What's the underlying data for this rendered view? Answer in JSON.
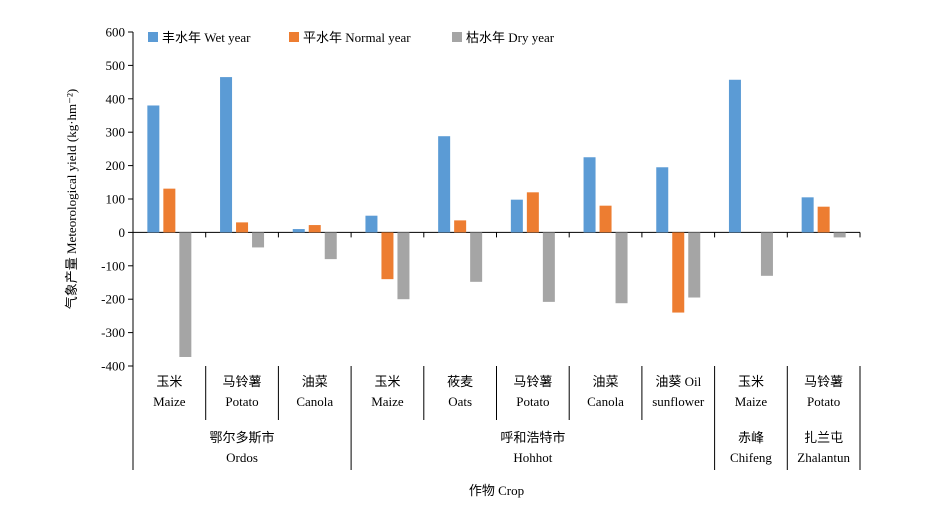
{
  "chart_data": {
    "type": "bar",
    "ylabel": "气象产量 Meteorological yield (kg·hm⁻²)",
    "xlabel": "作物 Crop",
    "ylim": [
      -400,
      600
    ],
    "yticks": [
      "600",
      "500",
      "400",
      "300",
      "200",
      "100",
      "0",
      "-100",
      "-200",
      "-300",
      "-400"
    ],
    "grid": false,
    "legend_position": "top-left",
    "categories": [
      {
        "zh": "玉米",
        "en": "Maize"
      },
      {
        "zh": "马铃薯",
        "en": "Potato"
      },
      {
        "zh": "油菜",
        "en": "Canola"
      },
      {
        "zh": "玉米",
        "en": "Maize"
      },
      {
        "zh": "莜麦",
        "en": "Oats"
      },
      {
        "zh": "马铃薯",
        "en": "Potato"
      },
      {
        "zh": "油菜",
        "en": "Canola"
      },
      {
        "zh": "油葵 Oil",
        "en": "sunflower"
      },
      {
        "zh": "玉米",
        "en": "Maize"
      },
      {
        "zh": "马铃薯",
        "en": "Potato"
      }
    ],
    "regions": [
      {
        "zh": "鄂尔多斯市",
        "en": "Ordos",
        "categories": 3
      },
      {
        "zh": "呼和浩特市",
        "en": "Hohhot",
        "categories": 5
      },
      {
        "zh": "赤峰",
        "en": "Chifeng",
        "categories": 1
      },
      {
        "zh": "扎兰屯",
        "en": "Zhalantun",
        "categories": 1
      }
    ],
    "series": [
      {
        "name": "丰水年 Wet year",
        "color": "#5B9BD5",
        "values": [
          380,
          465,
          10,
          50,
          288,
          98,
          225,
          195,
          457,
          105
        ]
      },
      {
        "name": "平水年 Normal year",
        "color": "#ED7D31",
        "values": [
          131,
          30,
          22,
          -140,
          36,
          120,
          80,
          -240,
          null,
          77
        ]
      },
      {
        "name": "枯水年 Dry year",
        "color": "#A5A5A5",
        "values": [
          -373,
          -45,
          -80,
          -200,
          -148,
          -208,
          -212,
          -195,
          -130,
          -15
        ]
      }
    ]
  }
}
